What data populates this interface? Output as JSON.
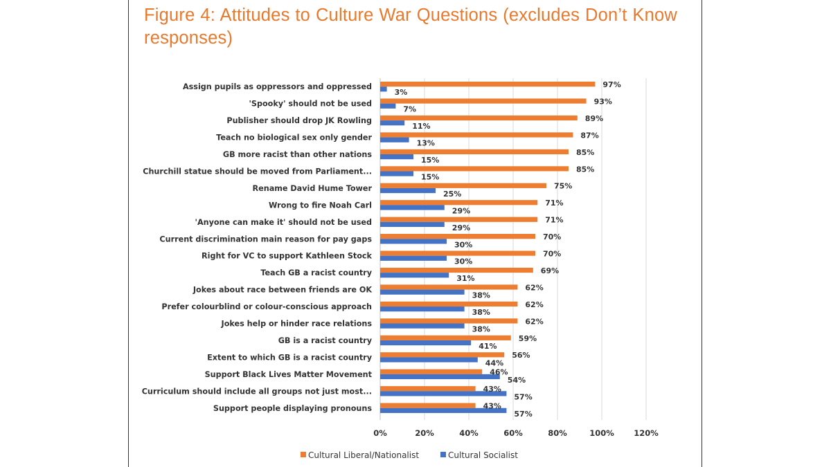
{
  "title": "Figure 4: Attitudes to Culture War Questions (excludes Don’t Know responses)",
  "colors": {
    "series1": "#ED7D31",
    "series2": "#4472C4",
    "title": "#E8792C",
    "grid": "#D9D9D9"
  },
  "chart_data": {
    "type": "bar",
    "orientation": "horizontal",
    "title": "Figure 4: Attitudes to Culture War Questions (excludes Don’t Know responses)",
    "categories": [
      "Assign pupils as oppressors and oppressed",
      "'Spooky' should not be used",
      "Publisher should drop JK Rowling",
      "Teach no biological sex only gender",
      "GB more racist than other nations",
      "Churchill statue should be moved from Parliament...",
      "Rename David Hume Tower",
      "Wrong to fire Noah Carl",
      "'Anyone can make it' should not be used",
      "Current discrimination main reason for pay gaps",
      "Right for VC to support Kathleen Stock",
      "Teach GB a racist country",
      "Jokes about race between friends are OK",
      "Prefer colourblind or colour-conscious approach",
      "Jokes help or hinder race relations",
      "GB is a racist country",
      "Extent to which GB is a racist country",
      "Support Black Lives Matter Movement",
      "Curriculum should include all groups not just most...",
      "Support people displaying pronouns"
    ],
    "series": [
      {
        "name": "Cultural Liberal/Nationalist",
        "values": [
          97,
          93,
          89,
          87,
          85,
          85,
          75,
          71,
          71,
          70,
          70,
          69,
          62,
          62,
          62,
          59,
          56,
          46,
          43,
          43
        ]
      },
      {
        "name": "Cultural Socialist",
        "values": [
          3,
          7,
          11,
          13,
          15,
          15,
          25,
          29,
          29,
          30,
          30,
          31,
          38,
          38,
          38,
          41,
          44,
          54,
          57,
          57
        ]
      }
    ],
    "value_suffix": "%",
    "xlim": [
      0,
      120
    ],
    "xticks": [
      0,
      20,
      40,
      60,
      80,
      100,
      120
    ],
    "xtick_labels": [
      "0%",
      "20%",
      "40%",
      "60%",
      "80%",
      "100%",
      "120%"
    ],
    "grid": true,
    "legend": "bottom"
  }
}
